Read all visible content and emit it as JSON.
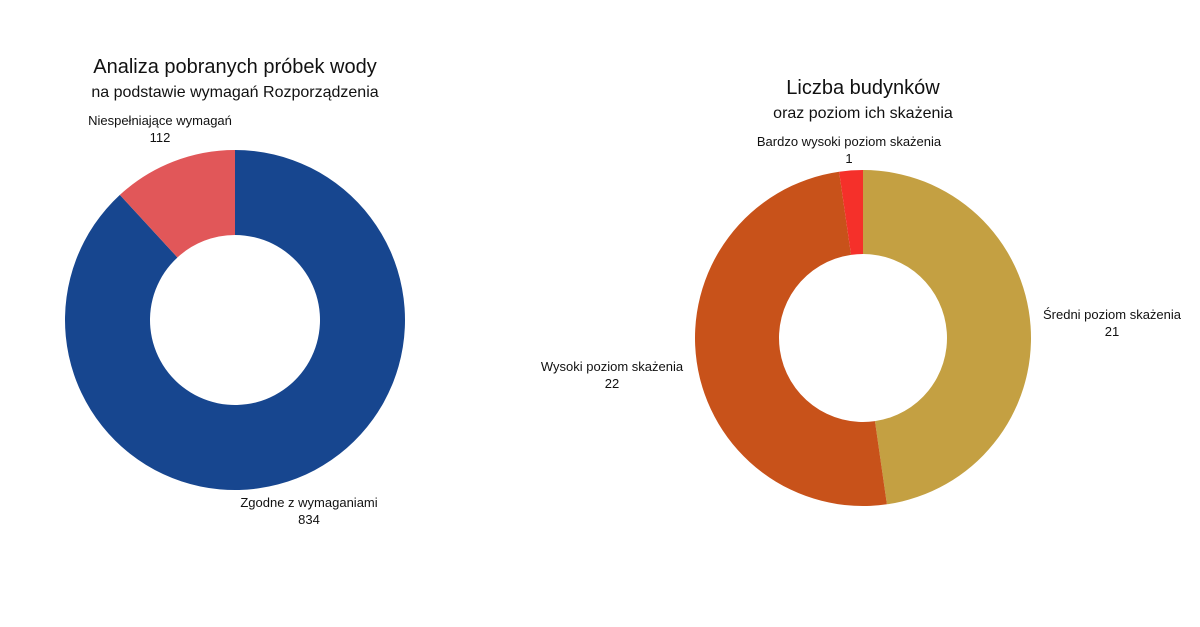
{
  "chart_data": [
    {
      "type": "pie",
      "title": "Analiza pobranych próbek wody",
      "subtitle": "na podstawie wymagań Rozporządzenia",
      "hole": 0.5,
      "slices": [
        {
          "label": "Zgodne z wymaganiami",
          "value": 834,
          "color": "#17468F"
        },
        {
          "label": "Niespełniające wymagań",
          "value": 112,
          "color": "#E15759"
        }
      ]
    },
    {
      "type": "pie",
      "title": "Liczba budynków",
      "subtitle": "oraz poziom ich skażenia",
      "hole": 0.5,
      "slices": [
        {
          "label": "Średni poziom skażenia",
          "value": 21,
          "color": "#C4A042"
        },
        {
          "label": "Wysoki poziom skażenia",
          "value": 22,
          "color": "#C8521A"
        },
        {
          "label": "Bardzo wysoki poziom skażenia",
          "value": 1,
          "color": "#F5302A"
        }
      ]
    }
  ]
}
